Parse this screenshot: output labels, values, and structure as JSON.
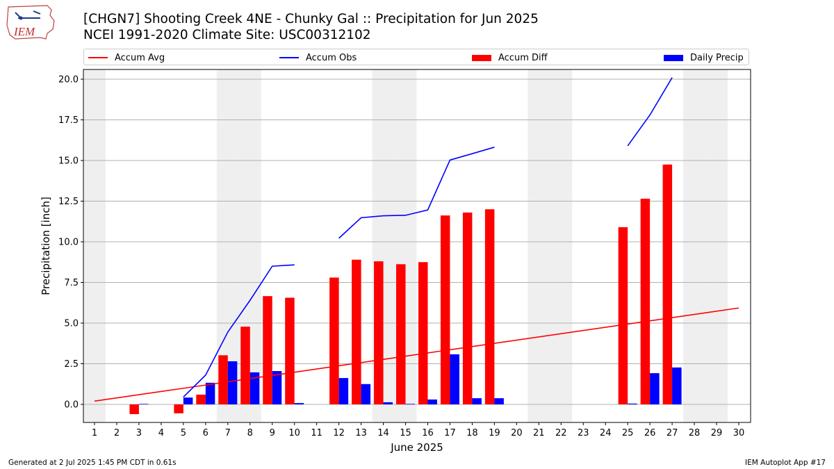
{
  "header": {
    "title_line1": "[CHGN7] Shooting Creek 4NE - Chunky Gal :: Precipitation for Jun 2025",
    "title_line2": "NCEI 1991-2020 Climate Site: USC00312102",
    "logo_text": "IEM"
  },
  "footer": {
    "left": "Generated at 2 Jul 2025 1:45 PM CDT in 0.61s",
    "right": "IEM Autoplot App #17"
  },
  "colors": {
    "avg": "#ff0000",
    "obs": "#0000ff",
    "diff": "#ff0000",
    "daily": "#0000ff",
    "weekend": "#efefef",
    "grid": "#b0b0b0"
  },
  "chart_data": {
    "type": "bar",
    "xlabel": "June 2025",
    "ylabel": "Precipitation [inch]",
    "xlim": [
      1,
      30
    ],
    "ylim": [
      -1.1,
      20.6
    ],
    "yticks": [
      0.0,
      2.5,
      5.0,
      7.5,
      10.0,
      12.5,
      15.0,
      17.5,
      20.0
    ],
    "ytick_labels": [
      "0.0",
      "2.5",
      "5.0",
      "7.5",
      "10.0",
      "12.5",
      "15.0",
      "17.5",
      "20.0"
    ],
    "days": [
      1,
      2,
      3,
      4,
      5,
      6,
      7,
      8,
      9,
      10,
      11,
      12,
      13,
      14,
      15,
      16,
      17,
      18,
      19,
      20,
      21,
      22,
      23,
      24,
      25,
      26,
      27,
      28,
      29,
      30
    ],
    "grid": "horizontal",
    "legend_position": "top",
    "shaded_days": [
      1,
      7,
      8,
      14,
      15,
      21,
      22,
      28,
      29
    ],
    "legend": [
      "Accum Avg",
      "Accum Obs",
      "Accum Diff",
      "Daily Precip"
    ],
    "series": [
      {
        "name": "Accum Avg",
        "kind": "line",
        "color": "#ff0000",
        "x": [
          1,
          30
        ],
        "values": [
          0.2,
          5.93
        ]
      },
      {
        "name": "Accum Obs",
        "kind": "line",
        "color": "#0000ff",
        "segments": [
          {
            "x": [
              5,
              6,
              7,
              8,
              9,
              10
            ],
            "values": [
              0.45,
              1.8,
              4.45,
              6.4,
              8.5,
              8.58
            ]
          },
          {
            "x": [
              12,
              13,
              14,
              15,
              16,
              17,
              18,
              19
            ],
            "values": [
              10.22,
              11.48,
              11.6,
              11.63,
              11.96,
              15.03,
              15.42,
              15.82
            ]
          },
          {
            "x": [
              25,
              26,
              27
            ],
            "values": [
              15.9,
              17.8,
              20.1
            ]
          }
        ]
      },
      {
        "name": "Accum Diff",
        "kind": "bar",
        "color": "#ff0000",
        "x": [
          3,
          5,
          6,
          7,
          8,
          9,
          10,
          12,
          13,
          14,
          15,
          16,
          17,
          18,
          19,
          25,
          26,
          27
        ],
        "values": [
          -0.6,
          -0.55,
          0.6,
          3.02,
          4.78,
          6.66,
          6.56,
          7.8,
          8.9,
          8.8,
          8.62,
          8.75,
          11.62,
          11.8,
          12.0,
          10.9,
          12.65,
          14.75
        ]
      },
      {
        "name": "Daily Precip",
        "kind": "bar",
        "color": "#0000ff",
        "x": [
          3,
          5,
          6,
          7,
          8,
          9,
          10,
          12,
          13,
          14,
          15,
          16,
          17,
          18,
          19,
          25,
          26,
          27
        ],
        "values": [
          0.03,
          0.42,
          1.33,
          2.65,
          1.97,
          2.05,
          0.08,
          1.62,
          1.25,
          0.13,
          0.03,
          0.3,
          3.08,
          0.38,
          0.38,
          0.05,
          1.92,
          2.27
        ]
      }
    ]
  }
}
